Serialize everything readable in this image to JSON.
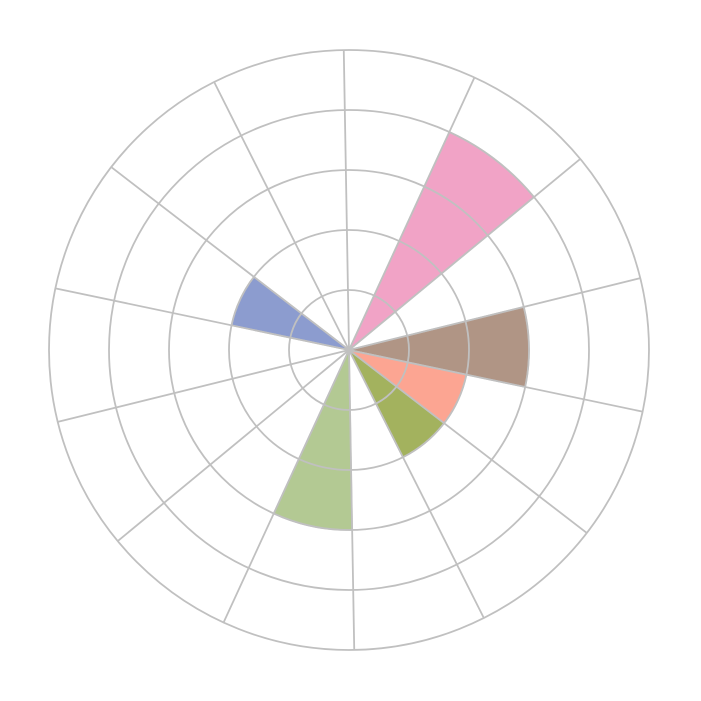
{
  "chart_data": {
    "type": "barpolar",
    "title": "",
    "sector_count": 14,
    "radial_range": [
      0,
      5
    ],
    "radial_grid_step": 1,
    "grid": true,
    "grid_color": "#c0c0c0",
    "direction": "clockwise",
    "bars": [
      {
        "sector": 1,
        "r": 4,
        "color": "#f1a3c6"
      },
      {
        "sector": 3,
        "r": 3,
        "color": "#b09585"
      },
      {
        "sector": 4,
        "r": 2,
        "color": "#fca592"
      },
      {
        "sector": 5,
        "r": 2,
        "color": "#a3b25e"
      },
      {
        "sector": 7,
        "r": 3,
        "color": "#b3c993"
      },
      {
        "sector": 11,
        "r": 2,
        "color": "#8c9ccf"
      }
    ]
  }
}
